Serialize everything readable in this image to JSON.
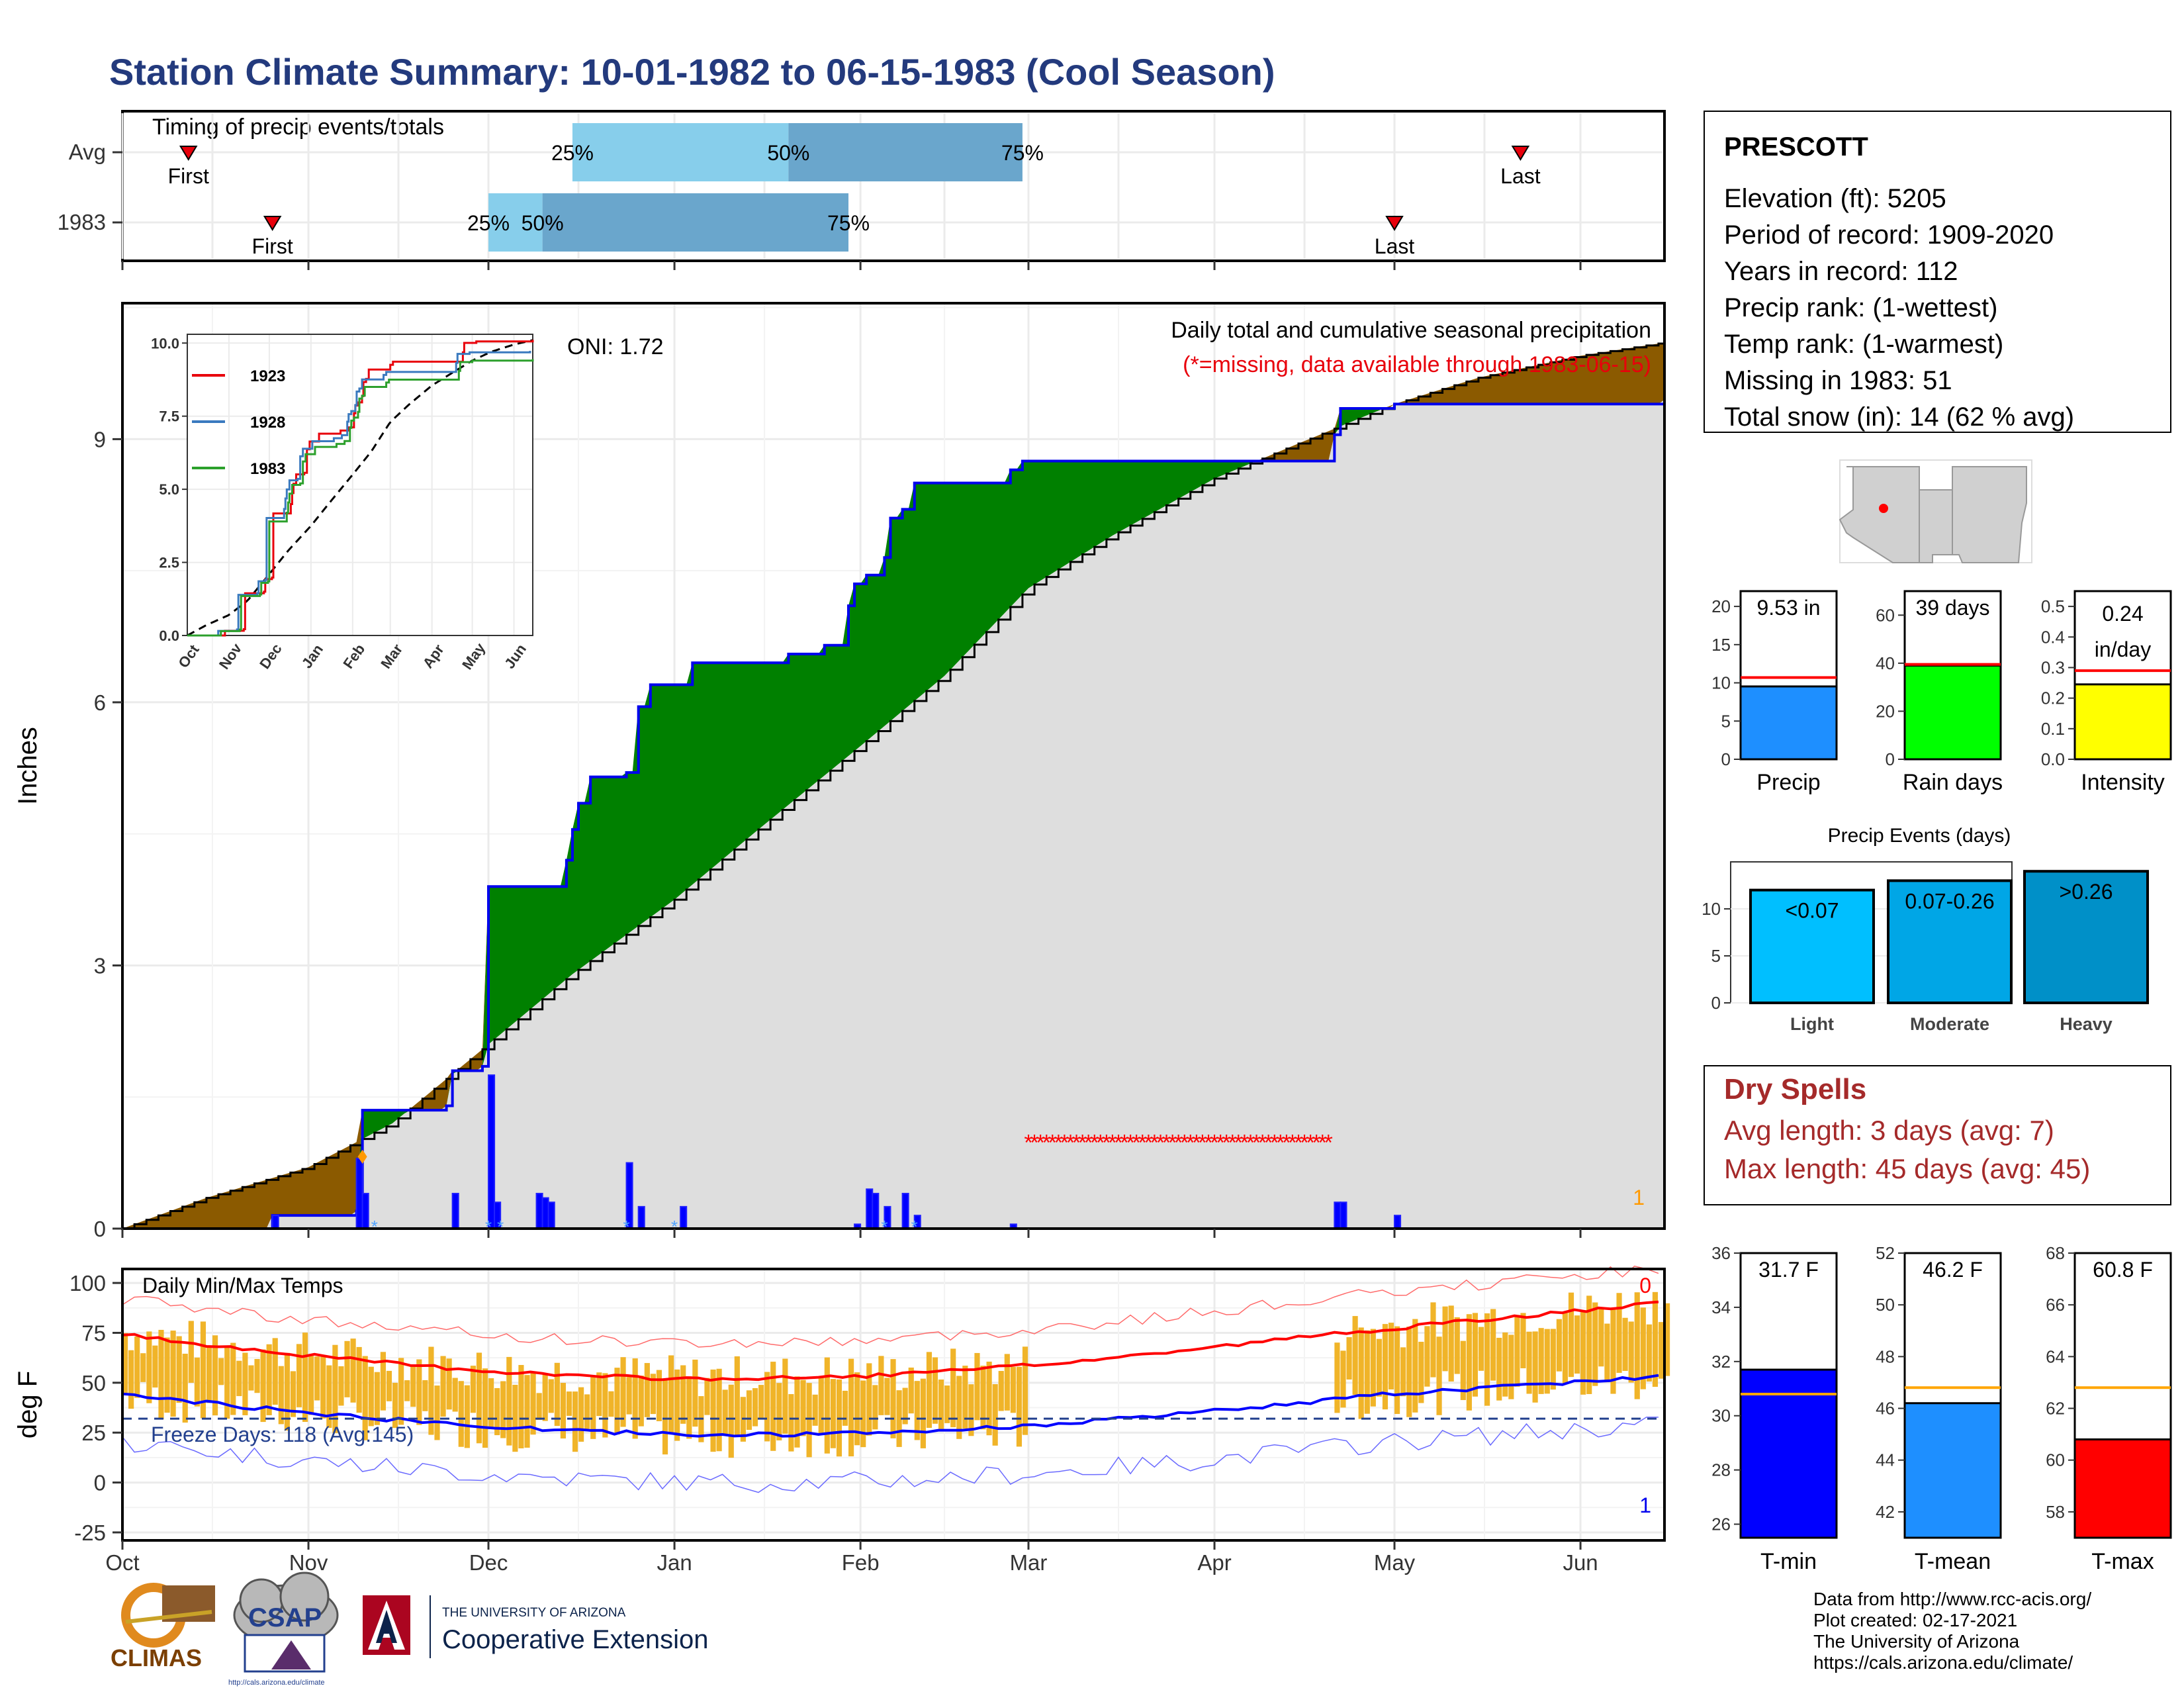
{
  "title": "Station Climate Summary: 10-01-1982 to 06-15-1983 (Cool Season)",
  "colors": {
    "title": "#233a7d",
    "obs_fill": "#008000",
    "deficit_fill": "#8b5a00",
    "obs_line": "#0000ee",
    "avg_line": "#000000",
    "bar_light": "#87ceeb",
    "bar_dark": "#6aa6cc",
    "temp_bar": "#f0b429",
    "red": "#e8000b",
    "blue": "#0000ee"
  },
  "timing": {
    "label": "Timing of precip events/totals",
    "rows": [
      {
        "name": "Avg",
        "first_date": "1982-10-12",
        "last_date": "1983-05-22",
        "p25": "1982-12-15",
        "p50": "1983-01-20",
        "p75": "1983-02-28",
        "labels": {
          "first": "First",
          "last": "Last",
          "p25": "25%",
          "p50": "50%",
          "p75": "75%"
        }
      },
      {
        "name": "1983",
        "first_date": "1982-10-26",
        "last_date": "1983-05-01",
        "p25": "1982-12-01",
        "p50": "1982-12-10",
        "p75": "1983-01-30",
        "labels": {
          "first": "First",
          "last": "Last",
          "p25": "25%",
          "p50": "50%",
          "p75": "75%"
        }
      }
    ]
  },
  "month_labels": [
    "Oct",
    "Nov",
    "Dec",
    "Jan",
    "Feb",
    "Mar",
    "Apr",
    "May",
    "Jun"
  ],
  "precip": {
    "ylabel": "Inches",
    "yticks": [
      0,
      3,
      6,
      9
    ],
    "legend_title": "Daily total and cumulative seasonal precipitation",
    "missing_note": "(*=missing, data available through 1983-06-15)",
    "oni": "ONI: 1.72",
    "corner_count": "1",
    "chart_data": {
      "type": "area",
      "observed_cumulative_steps": [
        [
          "1982-10-01",
          0
        ],
        [
          "1982-10-26",
          0.15
        ],
        [
          "1982-11-09",
          0.2
        ],
        [
          "1982-11-10",
          1.35
        ],
        [
          "1982-11-24",
          1.4
        ],
        [
          "1982-11-25",
          1.8
        ],
        [
          "1982-11-30",
          1.85
        ],
        [
          "1982-12-01",
          3.9
        ],
        [
          "1982-12-14",
          4.2
        ],
        [
          "1982-12-15",
          4.55
        ],
        [
          "1982-12-16",
          4.85
        ],
        [
          "1982-12-18",
          5.15
        ],
        [
          "1982-12-24",
          5.2
        ],
        [
          "1982-12-26",
          5.95
        ],
        [
          "1982-12-28",
          6.2
        ],
        [
          "1983-01-04",
          6.45
        ],
        [
          "1983-01-20",
          6.55
        ],
        [
          "1983-01-26",
          6.65
        ],
        [
          "1983-01-30",
          7.1
        ],
        [
          "1983-01-31",
          7.35
        ],
        [
          "1983-02-02",
          7.45
        ],
        [
          "1983-02-05",
          7.65
        ],
        [
          "1983-02-06",
          8.1
        ],
        [
          "1983-02-08",
          8.2
        ],
        [
          "1983-02-10",
          8.5
        ],
        [
          "1983-02-26",
          8.65
        ],
        [
          "1983-02-28",
          8.75
        ],
        [
          "1983-04-21",
          9.05
        ],
        [
          "1983-04-22",
          9.35
        ],
        [
          "1983-05-01",
          9.4
        ],
        [
          "1983-06-15",
          9.45
        ]
      ],
      "average_cumulative": [
        [
          "1982-10-01",
          0
        ],
        [
          "1982-10-15",
          0.35
        ],
        [
          "1982-11-01",
          0.7
        ],
        [
          "1982-11-15",
          1.2
        ],
        [
          "1982-12-01",
          2.1
        ],
        [
          "1982-12-15",
          2.9
        ],
        [
          "1983-01-01",
          3.75
        ],
        [
          "1983-01-15",
          4.55
        ],
        [
          "1983-02-01",
          5.5
        ],
        [
          "1983-02-15",
          6.3
        ],
        [
          "1983-03-01",
          7.3
        ],
        [
          "1983-03-15",
          7.9
        ],
        [
          "1983-04-01",
          8.55
        ],
        [
          "1983-04-15",
          8.95
        ],
        [
          "1983-05-01",
          9.4
        ],
        [
          "1983-05-15",
          9.7
        ],
        [
          "1983-06-01",
          9.95
        ],
        [
          "1983-06-15",
          10.1
        ]
      ],
      "daily_bars": [
        [
          "1982-10-26",
          0.15
        ],
        [
          "1982-11-09",
          0.8
        ],
        [
          "1982-11-10",
          0.4
        ],
        [
          "1982-11-25",
          0.4
        ],
        [
          "1982-12-01",
          1.75
        ],
        [
          "1982-12-02",
          0.3
        ],
        [
          "1982-12-09",
          0.4
        ],
        [
          "1982-12-10",
          0.35
        ],
        [
          "1982-12-11",
          0.3
        ],
        [
          "1982-12-24",
          0.75
        ],
        [
          "1982-12-26",
          0.25
        ],
        [
          "1983-01-02",
          0.25
        ],
        [
          "1983-01-31",
          0.05
        ],
        [
          "1983-02-02",
          0.45
        ],
        [
          "1983-02-03",
          0.4
        ],
        [
          "1983-02-05",
          0.25
        ],
        [
          "1983-02-08",
          0.4
        ],
        [
          "1983-02-10",
          0.15
        ],
        [
          "1983-02-26",
          0.05
        ],
        [
          "1983-04-21",
          0.3
        ],
        [
          "1983-04-22",
          0.3
        ],
        [
          "1983-05-01",
          0.15
        ]
      ],
      "missing_period": [
        "1983-03-01",
        "1983-04-20"
      ],
      "missing_y": 1.0
    }
  },
  "inset": {
    "legend": [
      "1923",
      "1928",
      "1983"
    ],
    "legend_colors": [
      "#e8000b",
      "#3a7abf",
      "#2ca02c"
    ],
    "yticks": [
      "0.0",
      "2.5",
      "5.0",
      "7.5",
      "10.0"
    ],
    "xticks": [
      "Oct",
      "Nov",
      "Dec",
      "Jan",
      "Feb",
      "Mar",
      "Apr",
      "May",
      "Jun"
    ]
  },
  "temps": {
    "label": "Daily Min/Max Temps",
    "ylabel": "deg F",
    "yticks": [
      -25,
      0,
      25,
      50,
      75,
      100
    ],
    "freeze_label": "Freeze Days: 118 (Avg:145)",
    "top_right": "0",
    "bottom_right": "1",
    "freeze_line": 32
  },
  "station": {
    "name": "PRESCOTT",
    "lines": [
      "Elevation (ft): 5205",
      "Period of record: 1909-2020",
      "Years in record: 112",
      "Precip rank:  (1-wettest)",
      "Temp rank:  (1-warmest)",
      "Missing in 1983: 51",
      "Total snow (in): 14 (62 % avg)"
    ]
  },
  "summary_bars": [
    {
      "name": "Precip",
      "value_label": "9.53 in",
      "value": 9.53,
      "avg": 10.7,
      "ymax": 22,
      "ticks": [
        0,
        5,
        10,
        15,
        20
      ],
      "color": "#1e8fff"
    },
    {
      "name": "Rain days",
      "value_label": "39 days",
      "value": 39,
      "avg": 39.5,
      "ymax": 70,
      "ticks": [
        0,
        20,
        40,
        60
      ],
      "color": "#00ff00"
    },
    {
      "name": "Intensity",
      "value_label": "0.24 in/day",
      "value_line1": "0.24",
      "value_line2": "in/day",
      "value": 0.245,
      "avg": 0.29,
      "ymax": 0.55,
      "ticks": [
        "0.0",
        "0.1",
        "0.2",
        "0.3",
        "0.4",
        "0.5"
      ],
      "color": "#ffff00"
    }
  ],
  "events": {
    "title": "Precip Events (days)",
    "bars": [
      {
        "name": "Light",
        "label": "<0.07",
        "value": 12,
        "color": "#00bfff"
      },
      {
        "name": "Moderate",
        "label": "0.07-0.26",
        "value": 13,
        "color": "#00a6e6"
      },
      {
        "name": "Heavy",
        "label": ">0.26",
        "value": 14,
        "color": "#0090c8"
      }
    ],
    "ticks": [
      0,
      5,
      10
    ]
  },
  "dry_spells": {
    "title": "Dry Spells",
    "avg": "Avg length: 3 days (avg: 7)",
    "max": "Max length: 45 days (avg: 45)"
  },
  "temp_bars": [
    {
      "name": "T-min",
      "value_label": "31.7 F",
      "value": 31.7,
      "avg": 30.8,
      "min": 25.5,
      "max": 36,
      "ticks": [
        26,
        28,
        30,
        32,
        34,
        36
      ],
      "color": "#0000ff"
    },
    {
      "name": "T-mean",
      "value_label": "46.2 F",
      "value": 46.2,
      "avg": 46.8,
      "min": 41,
      "max": 52,
      "ticks": [
        42,
        44,
        46,
        48,
        50,
        52
      ],
      "color": "#1e8fff"
    },
    {
      "name": "T-max",
      "value_label": "60.8 F",
      "value": 60.8,
      "avg": 62.8,
      "min": 57,
      "max": 68,
      "ticks": [
        58,
        60,
        62,
        64,
        66,
        68
      ],
      "color": "#ff0000"
    }
  ],
  "footer": {
    "lines": [
      "Data from http://www.rcc-acis.org/",
      "Plot created: 02-17-2021",
      "The University of Arizona",
      "https://cals.arizona.edu/climate/"
    ],
    "logos": {
      "climas": "CLIMAS",
      "csap": "CSAP",
      "csap_url": "http://cals.arizona.edu/climate",
      "ua_small": "THE UNIVERSITY OF ARIZONA",
      "ua_big": "Cooperative Extension"
    }
  }
}
